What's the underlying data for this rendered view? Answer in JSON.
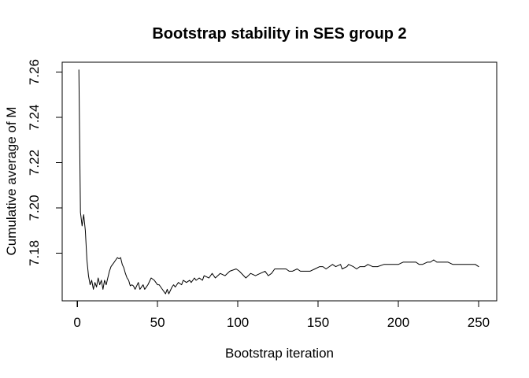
{
  "chart_data": {
    "type": "line",
    "title": "Bootstrap stability in SES group 2",
    "xlabel": "Bootstrap iteration",
    "ylabel": "Cumulative average of M",
    "grid": false,
    "legend": null,
    "background_color": "#ffffff",
    "line_color": "#000000",
    "axis_color": "#000000",
    "xlim": [
      -9.4,
      261.3
    ],
    "ylim": [
      7.1589,
      7.2644
    ],
    "x_ticks": {
      "values": [
        0,
        50,
        100,
        150,
        200,
        250
      ],
      "labels": [
        "0",
        "50",
        "100",
        "150",
        "200",
        "250"
      ]
    },
    "y_ticks": {
      "values": [
        7.18,
        7.2,
        7.22,
        7.24,
        7.26
      ],
      "labels": [
        "7.18",
        "7.20",
        "7.22",
        "7.24",
        "7.26"
      ]
    },
    "series": [
      {
        "name": "cumulative-average-of-M",
        "points": [
          [
            1,
            7.261
          ],
          [
            2,
            7.198
          ],
          [
            3,
            7.192
          ],
          [
            4,
            7.197
          ],
          [
            5,
            7.19
          ],
          [
            6,
            7.177
          ],
          [
            7,
            7.17
          ],
          [
            8,
            7.166
          ],
          [
            9,
            7.168
          ],
          [
            10,
            7.164
          ],
          [
            11,
            7.167
          ],
          [
            12,
            7.165
          ],
          [
            13,
            7.169
          ],
          [
            14,
            7.166
          ],
          [
            15,
            7.168
          ],
          [
            16,
            7.164
          ],
          [
            17,
            7.168
          ],
          [
            18,
            7.166
          ],
          [
            19,
            7.169
          ],
          [
            20,
            7.172
          ],
          [
            21,
            7.174
          ],
          [
            22,
            7.175
          ],
          [
            23,
            7.176
          ],
          [
            24,
            7.177
          ],
          [
            25,
            7.178
          ],
          [
            26,
            7.1775
          ],
          [
            27,
            7.178
          ],
          [
            28,
            7.175
          ],
          [
            29,
            7.1735
          ],
          [
            30,
            7.171
          ],
          [
            31,
            7.169
          ],
          [
            32,
            7.168
          ],
          [
            33,
            7.1655
          ],
          [
            34,
            7.166
          ],
          [
            35,
            7.1655
          ],
          [
            36,
            7.164
          ],
          [
            38,
            7.167
          ],
          [
            39,
            7.164
          ],
          [
            41,
            7.166
          ],
          [
            42,
            7.164
          ],
          [
            44,
            7.166
          ],
          [
            46,
            7.169
          ],
          [
            48,
            7.168
          ],
          [
            50,
            7.166
          ],
          [
            51,
            7.166
          ],
          [
            53,
            7.164
          ],
          [
            55,
            7.162
          ],
          [
            56,
            7.164
          ],
          [
            57,
            7.162
          ],
          [
            59,
            7.165
          ],
          [
            60,
            7.166
          ],
          [
            61,
            7.165
          ],
          [
            63,
            7.167
          ],
          [
            65,
            7.166
          ],
          [
            66,
            7.168
          ],
          [
            68,
            7.167
          ],
          [
            70,
            7.168
          ],
          [
            71,
            7.167
          ],
          [
            73,
            7.169
          ],
          [
            74,
            7.168
          ],
          [
            76,
            7.169
          ],
          [
            78,
            7.168
          ],
          [
            79,
            7.17
          ],
          [
            82,
            7.169
          ],
          [
            84,
            7.171
          ],
          [
            86,
            7.169
          ],
          [
            89,
            7.171
          ],
          [
            92,
            7.17
          ],
          [
            95,
            7.172
          ],
          [
            99,
            7.173
          ],
          [
            101,
            7.172
          ],
          [
            105,
            7.169
          ],
          [
            108,
            7.171
          ],
          [
            111,
            7.17
          ],
          [
            114,
            7.171
          ],
          [
            117,
            7.172
          ],
          [
            119,
            7.17
          ],
          [
            121,
            7.171
          ],
          [
            123,
            7.173
          ],
          [
            127,
            7.173
          ],
          [
            130,
            7.173
          ],
          [
            132,
            7.172
          ],
          [
            134,
            7.172
          ],
          [
            137,
            7.173
          ],
          [
            139,
            7.172
          ],
          [
            142,
            7.172
          ],
          [
            145,
            7.172
          ],
          [
            148,
            7.173
          ],
          [
            151,
            7.174
          ],
          [
            153,
            7.174
          ],
          [
            155,
            7.173
          ],
          [
            157,
            7.174
          ],
          [
            159,
            7.175
          ],
          [
            161,
            7.174
          ],
          [
            164,
            7.175
          ],
          [
            165,
            7.173
          ],
          [
            168,
            7.174
          ],
          [
            169,
            7.175
          ],
          [
            172,
            7.174
          ],
          [
            174,
            7.173
          ],
          [
            176,
            7.174
          ],
          [
            179,
            7.174
          ],
          [
            181,
            7.175
          ],
          [
            184,
            7.174
          ],
          [
            187,
            7.174
          ],
          [
            191,
            7.175
          ],
          [
            194,
            7.175
          ],
          [
            197,
            7.175
          ],
          [
            200,
            7.175
          ],
          [
            203,
            7.176
          ],
          [
            206,
            7.176
          ],
          [
            208,
            7.176
          ],
          [
            211,
            7.176
          ],
          [
            213,
            7.175
          ],
          [
            215,
            7.175
          ],
          [
            218,
            7.176
          ],
          [
            220,
            7.176
          ],
          [
            222,
            7.177
          ],
          [
            224,
            7.176
          ],
          [
            226,
            7.176
          ],
          [
            229,
            7.176
          ],
          [
            231,
            7.176
          ],
          [
            234,
            7.175
          ],
          [
            236,
            7.175
          ],
          [
            239,
            7.175
          ],
          [
            241,
            7.175
          ],
          [
            244,
            7.175
          ],
          [
            246,
            7.175
          ],
          [
            248,
            7.175
          ],
          [
            250,
            7.174
          ]
        ]
      }
    ]
  }
}
